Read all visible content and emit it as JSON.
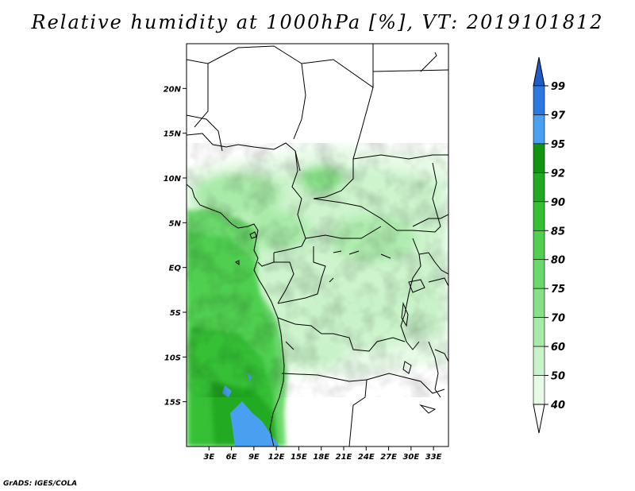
{
  "title": "Relative humidity at 1000hPa [%], VT: 2019101812",
  "credit": "GrADS: IGES/COLA",
  "map": {
    "lon_range": [
      0,
      35
    ],
    "lat_range": [
      -20,
      25
    ],
    "lat_ticks": [
      {
        "value": 20,
        "label": "20N"
      },
      {
        "value": 15,
        "label": "15N"
      },
      {
        "value": 10,
        "label": "10N"
      },
      {
        "value": 5,
        "label": "5N"
      },
      {
        "value": 0,
        "label": "EQ"
      },
      {
        "value": -5,
        "label": "5S"
      },
      {
        "value": -10,
        "label": "10S"
      },
      {
        "value": -15,
        "label": "15S"
      }
    ],
    "lon_ticks": [
      {
        "value": 3,
        "label": "3E"
      },
      {
        "value": 6,
        "label": "6E"
      },
      {
        "value": 9,
        "label": "9E"
      },
      {
        "value": 12,
        "label": "12E"
      },
      {
        "value": 15,
        "label": "15E"
      },
      {
        "value": 18,
        "label": "18E"
      },
      {
        "value": 21,
        "label": "21E"
      },
      {
        "value": 24,
        "label": "24E"
      },
      {
        "value": 27,
        "label": "27E"
      },
      {
        "value": 30,
        "label": "30E"
      },
      {
        "value": 33,
        "label": "33E"
      }
    ]
  },
  "colorbar": {
    "levels": [
      "40",
      "50",
      "60",
      "70",
      "75",
      "80",
      "85",
      "90",
      "92",
      "95",
      "97",
      "99"
    ],
    "colors": [
      "#ffffff",
      "#e6fae6",
      "#c8f2c8",
      "#a8eaa8",
      "#88e188",
      "#6ad86a",
      "#50cf50",
      "#36c036",
      "#22aa22",
      "#129612",
      "#4aa0f0",
      "#2a78e0",
      "#1e5cc8"
    ]
  }
}
